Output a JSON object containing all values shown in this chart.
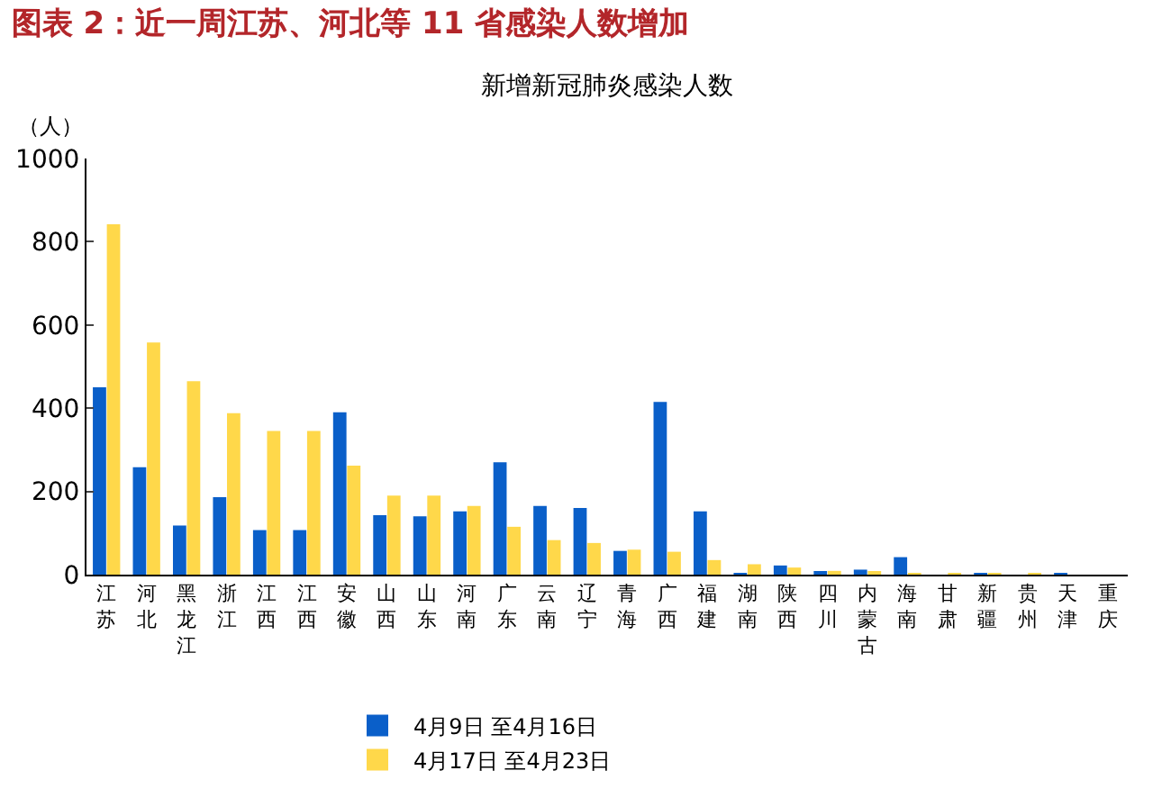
{
  "chart_data": {
    "type": "bar",
    "title": "图表 2：近一周江苏、河北等 11 省感染人数增加",
    "subtitle": "新增新冠肺炎感染人数",
    "ylabel": "（人）",
    "categories": [
      "江苏",
      "河北",
      "黑龙江",
      "浙江",
      "江西",
      "江西",
      "安徽",
      "山西",
      "山东",
      "河南",
      "广东",
      "云南",
      "辽宁",
      "青海",
      "广西",
      "福建",
      "湖南",
      "陕西",
      "四川",
      "内蒙古",
      "海南",
      "甘肃",
      "新疆",
      "贵州",
      "天津",
      "重庆"
    ],
    "series": [
      {
        "name": "4月9日 至4月16日",
        "color": "#0a5fc9",
        "values": [
          450,
          258,
          118,
          186,
          107,
          107,
          390,
          143,
          140,
          152,
          270,
          165,
          160,
          57,
          415,
          152,
          2,
          22,
          8,
          12,
          42,
          0,
          3,
          0,
          2,
          0
        ]
      },
      {
        "name": "4月17日 至4月23日",
        "color": "#ffd84a",
        "values": [
          842,
          558,
          465,
          388,
          345,
          345,
          262,
          190,
          190,
          165,
          115,
          83,
          76,
          60,
          55,
          35,
          25,
          17,
          9,
          7,
          2,
          2,
          1,
          2,
          0,
          0
        ]
      }
    ],
    "ylim": [
      0,
      1000
    ],
    "yticks": [
      0,
      200,
      400,
      600,
      800,
      1000
    ],
    "grid": false,
    "legend": "bottom"
  }
}
